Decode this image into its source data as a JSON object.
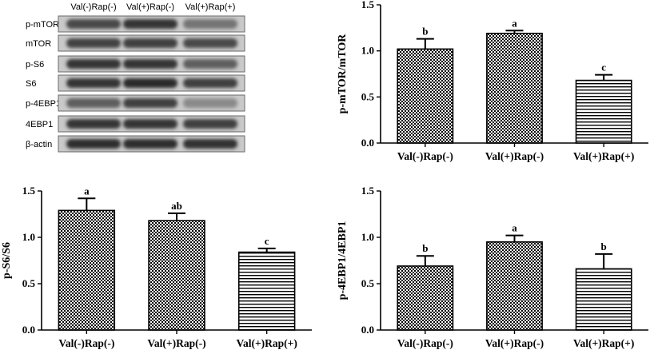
{
  "western_blot": {
    "lanes": [
      "Val(-)Rap(-)",
      "Val(+)Rap(-)",
      "Val(+)Rap(+)"
    ],
    "rows": [
      {
        "label": "p-mTOR",
        "intensities": [
          0.75,
          0.85,
          0.55
        ]
      },
      {
        "label": "mTOR",
        "intensities": [
          0.78,
          0.8,
          0.75
        ]
      },
      {
        "label": "p-S6",
        "intensities": [
          0.85,
          0.85,
          0.65
        ]
      },
      {
        "label": "S6",
        "intensities": [
          0.85,
          0.9,
          0.8
        ]
      },
      {
        "label": "p-4EBP1",
        "intensities": [
          0.65,
          0.8,
          0.45
        ]
      },
      {
        "label": "4EBP1",
        "intensities": [
          0.85,
          0.85,
          0.8
        ]
      },
      {
        "label": "β-actin",
        "intensities": [
          0.88,
          0.88,
          0.86
        ]
      }
    ]
  },
  "chart_data": [
    {
      "type": "bar",
      "ylabel": "p-mTOR/mTOR",
      "categories": [
        "Val(-)Rap(-)",
        "Val(+)Rap(-)",
        "Val(+)Rap(+)"
      ],
      "values": [
        1.02,
        1.19,
        0.68
      ],
      "errors": [
        0.11,
        0.03,
        0.06
      ],
      "significance": [
        "b",
        "a",
        "c"
      ],
      "patterns": [
        "checker",
        "checker",
        "hstripe"
      ],
      "ylim": [
        0,
        1.5
      ],
      "yticks": [
        "0.0",
        "0.5",
        "1.0",
        "1.5"
      ]
    },
    {
      "type": "bar",
      "ylabel": "p-S6/S6",
      "categories": [
        "Val(-)Rap(-)",
        "Val(+)Rap(-)",
        "Val(+)Rap(+)"
      ],
      "values": [
        1.29,
        1.18,
        0.84
      ],
      "errors": [
        0.13,
        0.08,
        0.04
      ],
      "significance": [
        "a",
        "ab",
        "c"
      ],
      "patterns": [
        "checker",
        "checker",
        "hstripe"
      ],
      "ylim": [
        0,
        1.5
      ],
      "yticks": [
        "0.0",
        "0.5",
        "1.0",
        "1.5"
      ]
    },
    {
      "type": "bar",
      "ylabel": "p-4EBP1/4EBP1",
      "categories": [
        "Val(-)Rap(-)",
        "Val(+)Rap(-)",
        "Val(+)Rap(+)"
      ],
      "values": [
        0.69,
        0.95,
        0.66
      ],
      "errors": [
        0.11,
        0.07,
        0.16
      ],
      "significance": [
        "b",
        "a",
        "b"
      ],
      "patterns": [
        "checker",
        "checker",
        "hstripe"
      ],
      "ylim": [
        0,
        1.5
      ],
      "yticks": [
        "0.0",
        "0.5",
        "1.0",
        "1.5"
      ]
    }
  ]
}
